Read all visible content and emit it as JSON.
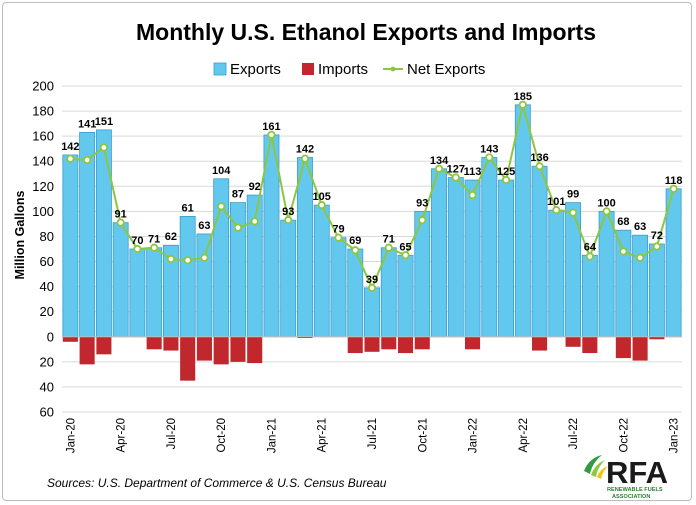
{
  "chart_data": {
    "type": "bar",
    "title": "Monthly U.S. Ethanol Exports and Imports",
    "ylabel": "Million Gallons",
    "xlabel": "",
    "ylim": [
      -60,
      200
    ],
    "y_ticks": [
      -60,
      -40,
      -20,
      0,
      20,
      40,
      60,
      80,
      100,
      120,
      140,
      160,
      180,
      200
    ],
    "y_tick_labels": [
      "60",
      "40",
      "20",
      "0",
      "20",
      "40",
      "60",
      "80",
      "100",
      "120",
      "140",
      "160",
      "180",
      "200"
    ],
    "grid": true,
    "legend_position": "top-center",
    "categories": [
      "Jan-20",
      "Feb-20",
      "Mar-20",
      "Apr-20",
      "May-20",
      "Jun-20",
      "Jul-20",
      "Aug-20",
      "Sep-20",
      "Oct-20",
      "Nov-20",
      "Dec-20",
      "Jan-21",
      "Feb-21",
      "Mar-21",
      "Apr-21",
      "May-21",
      "Jun-21",
      "Jul-21",
      "Aug-21",
      "Sep-21",
      "Oct-21",
      "Nov-21",
      "Dec-21",
      "Jan-22",
      "Feb-22",
      "Mar-22",
      "Apr-22",
      "May-22",
      "Jun-22",
      "Jul-22",
      "Aug-22",
      "Sep-22",
      "Oct-22",
      "Nov-22",
      "Dec-22",
      "Jan-23"
    ],
    "x_tick_labels": [
      {
        "index": 0,
        "label": "Jan-20"
      },
      {
        "index": 3,
        "label": "Apr-20"
      },
      {
        "index": 6,
        "label": "Jul-20"
      },
      {
        "index": 9,
        "label": "Oct-20"
      },
      {
        "index": 12,
        "label": "Jan-21"
      },
      {
        "index": 15,
        "label": "Apr-21"
      },
      {
        "index": 18,
        "label": "Jul-21"
      },
      {
        "index": 21,
        "label": "Oct-21"
      },
      {
        "index": 24,
        "label": "Jan-22"
      },
      {
        "index": 27,
        "label": "Apr-22"
      },
      {
        "index": 30,
        "label": "Jul-22"
      },
      {
        "index": 33,
        "label": "Oct-22"
      },
      {
        "index": 36,
        "label": "Jan-23"
      }
    ],
    "series": [
      {
        "name": "Exports",
        "type": "bar",
        "color": "#63c8ee",
        "values": [
          145,
          163,
          165,
          91,
          70,
          71,
          73,
          96,
          82,
          126,
          107,
          113,
          161,
          93,
          143,
          105,
          79,
          70,
          39,
          71,
          65,
          100,
          134,
          127,
          125,
          143,
          125,
          185,
          136,
          101,
          107,
          65,
          100,
          85,
          81,
          74,
          118
        ]
      },
      {
        "name": "Imports",
        "type": "bar",
        "color": "#c0282d",
        "values": [
          -4,
          -22,
          -14,
          0,
          0,
          -10,
          -11,
          -35,
          -19,
          -22,
          -20,
          -21,
          0,
          0,
          -1,
          0,
          0,
          -13,
          -12,
          -10,
          -13,
          -10,
          0,
          0,
          -10,
          0,
          0,
          0,
          -11,
          0,
          -8,
          -13,
          0,
          -17,
          -19,
          -2,
          0
        ]
      },
      {
        "name": "Net Exports",
        "type": "line",
        "color": "#8dc63f",
        "values": [
          142,
          141,
          151,
          91,
          70,
          71,
          62,
          61,
          63,
          104,
          87,
          92,
          161,
          93,
          142,
          105,
          79,
          69,
          39,
          71,
          65,
          93,
          134,
          127,
          113,
          143,
          125,
          185,
          136,
          101,
          99,
          64,
          100,
          68,
          63,
          72,
          118
        ]
      }
    ]
  },
  "legend": {
    "exports": "Exports",
    "imports": "Imports",
    "net_exports": "Net Exports"
  },
  "source_note": "Sources: U.S. Department of Commerce & U.S. Census Bureau",
  "logo": {
    "text": "RFA",
    "subtext_1": "RENEWABLE FUELS",
    "subtext_2": "ASSOCIATION",
    "colors": {
      "green": "#2e9c3f",
      "lime": "#8dc63f",
      "yellow": "#f2c20c"
    }
  }
}
